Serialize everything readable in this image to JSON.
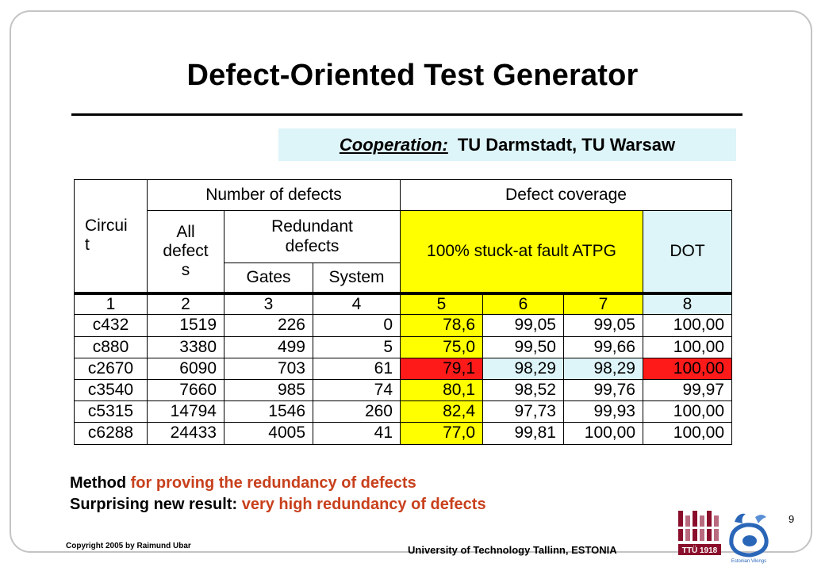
{
  "slide": {
    "title": "Defect-Oriented Test Generator",
    "cooperation_label": "Cooperation:",
    "cooperation_value": "TU Darmstadt, TU Warsaw",
    "page_number": "9",
    "copyright": "Copyright  2005 by Raimund Ubar",
    "university": "University of Technology Tallinn, ESTONIA",
    "logo_text": "TTÜ 1918",
    "logo2_text": "Estonian Vikings"
  },
  "table": {
    "headers": {
      "circuit": "Circui\nt",
      "number_of_defects": "Number of defects",
      "defect_coverage": "Defect coverage",
      "all_defects": "All\ndefect\ns",
      "redundant_defects": "Redundant\ndefects",
      "gates": "Gates",
      "system": "System",
      "stuck_at": "100% stuck-at fault ATPG",
      "dot": "DOT"
    },
    "column_numbers": [
      "1",
      "2",
      "3",
      "4",
      "5",
      "6",
      "7",
      "8"
    ],
    "rows": [
      [
        "c432",
        "1519",
        "226",
        "0",
        "78,6",
        "99,05",
        "99,05",
        "100,00"
      ],
      [
        "c880",
        "3380",
        "499",
        "5",
        "75,0",
        "99,50",
        "99,66",
        "100,00"
      ],
      [
        "c2670",
        "6090",
        "703",
        "61",
        "79,1",
        "98,29",
        "98,29",
        "100,00"
      ],
      [
        "c3540",
        "7660",
        "985",
        "74",
        "80,1",
        "98,52",
        "99,76",
        "99,97"
      ],
      [
        "c5315",
        "14794",
        "1546",
        "260",
        "82,4",
        "97,73",
        "99,93",
        "100,00"
      ],
      [
        "c6288",
        "24433",
        "4005",
        "41",
        "77,0",
        "99,81",
        "100,00",
        "100,00"
      ]
    ]
  },
  "notes": {
    "line1_bold": "Method",
    "line1_rest": " for proving the redundancy of defects",
    "line2_bold": "Surprising new result:",
    "line2_rest": " very high redundancy of defects"
  },
  "colors": {
    "highlight_yellow": "#ffff00",
    "highlight_light_blue": "#ddf4f8",
    "highlight_red": "#ff1a1a",
    "accent_text": "#c8401c"
  }
}
